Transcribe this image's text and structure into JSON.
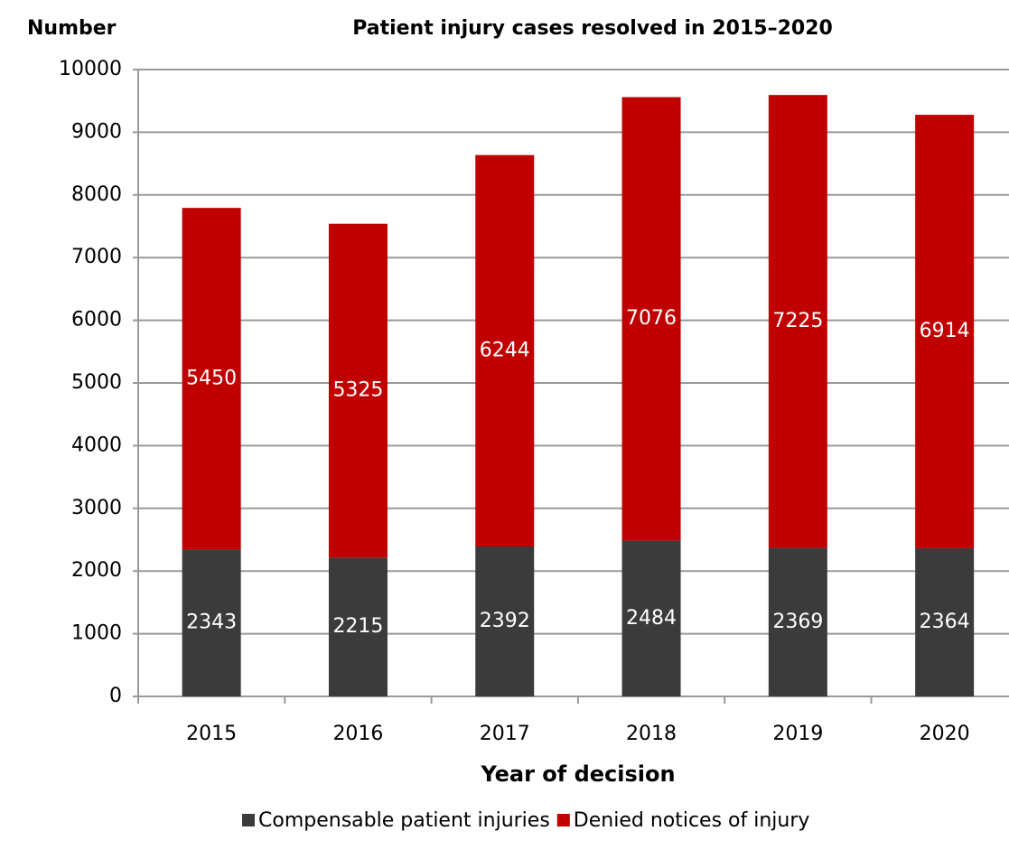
{
  "chart_data": {
    "type": "bar",
    "stacked": true,
    "title": "Patient injury cases resolved in 2015–2020",
    "y_label": "Number",
    "x_label": "Year of decision",
    "categories": [
      "2015",
      "2016",
      "2017",
      "2018",
      "2019",
      "2020"
    ],
    "series": [
      {
        "name": "Compensable patient injuries",
        "color": "#3b3b3b",
        "values": [
          2343,
          2215,
          2392,
          2484,
          2369,
          2364
        ]
      },
      {
        "name": "Denied notices of injury",
        "color": "#c00000",
        "values": [
          5450,
          5325,
          6244,
          7076,
          7225,
          6914
        ]
      }
    ],
    "ylim": [
      0,
      10000
    ],
    "yticks": [
      0,
      1000,
      2000,
      3000,
      4000,
      5000,
      6000,
      7000,
      8000,
      9000,
      10000
    ],
    "grid": true,
    "legend": "bottom"
  }
}
